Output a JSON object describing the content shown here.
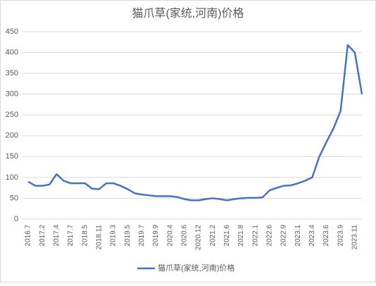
{
  "chart_data": {
    "type": "line",
    "title": "猫爪草(家统,河南)价格",
    "categories": [
      "2016.7",
      null,
      "2017.2",
      null,
      "2017.4",
      null,
      "2017.7",
      null,
      "2018.5",
      null,
      "2018.11",
      null,
      "2019.3",
      null,
      "2019.5",
      null,
      "2019.7",
      null,
      "2019.9",
      null,
      "2020.4",
      null,
      "2020.6",
      null,
      "2020.12",
      null,
      "2021.2",
      null,
      "2021.6",
      null,
      "2021.8",
      null,
      "2022.1",
      null,
      "2022.6",
      null,
      "2022.9",
      null,
      "2023.1",
      null,
      "2023.4",
      null,
      "2023.6",
      null,
      "2023.9",
      null,
      "2023.11",
      null
    ],
    "series": [
      {
        "name": "猫爪草(家统,河南)价格",
        "color": "#4472c4",
        "values": [
          90,
          80,
          80,
          83,
          108,
          92,
          86,
          86,
          86,
          73,
          72,
          86,
          86,
          80,
          72,
          62,
          59,
          57,
          55,
          55,
          55,
          53,
          48,
          45,
          45,
          48,
          50,
          48,
          45,
          48,
          50,
          51,
          51,
          52,
          69,
          75,
          80,
          81,
          86,
          92,
          100,
          150,
          185,
          218,
          260,
          418,
          400,
          300
        ]
      }
    ],
    "ylim": [
      0,
      450
    ],
    "yticks": [
      0,
      50,
      100,
      150,
      200,
      250,
      300,
      350,
      400,
      450
    ],
    "grid": true,
    "legend": "bottom"
  }
}
